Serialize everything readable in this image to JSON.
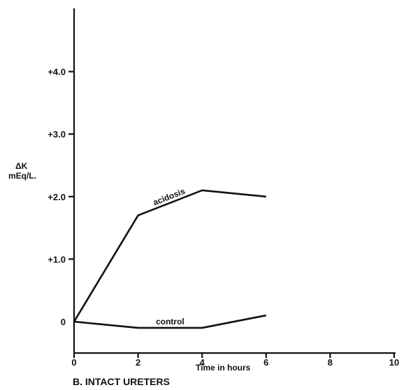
{
  "chart_data": {
    "type": "line",
    "x": [
      0,
      2,
      4,
      6
    ],
    "xlim": [
      0,
      10
    ],
    "ylim": [
      -0.5,
      5.0
    ],
    "x_ticks": [
      0,
      2,
      4,
      6,
      8,
      10
    ],
    "x_tick_labels": [
      "0",
      "2",
      "4",
      "6",
      "8",
      "10"
    ],
    "y_ticks": [
      0,
      1.0,
      2.0,
      3.0,
      4.0
    ],
    "y_tick_labels": [
      "0",
      "+1.0",
      "+2.0",
      "+3.0",
      "+4.0"
    ],
    "xlabel": "Time in hours",
    "ylabel_line1": "ΔK",
    "ylabel_line2": "mEq/L.",
    "caption": "B. INTACT URETERS",
    "grid": false,
    "series": [
      {
        "name": "acidosis",
        "values": [
          0,
          1.7,
          2.1,
          2.0
        ]
      },
      {
        "name": "control",
        "values": [
          0,
          -0.1,
          -0.1,
          0.1
        ]
      }
    ]
  }
}
